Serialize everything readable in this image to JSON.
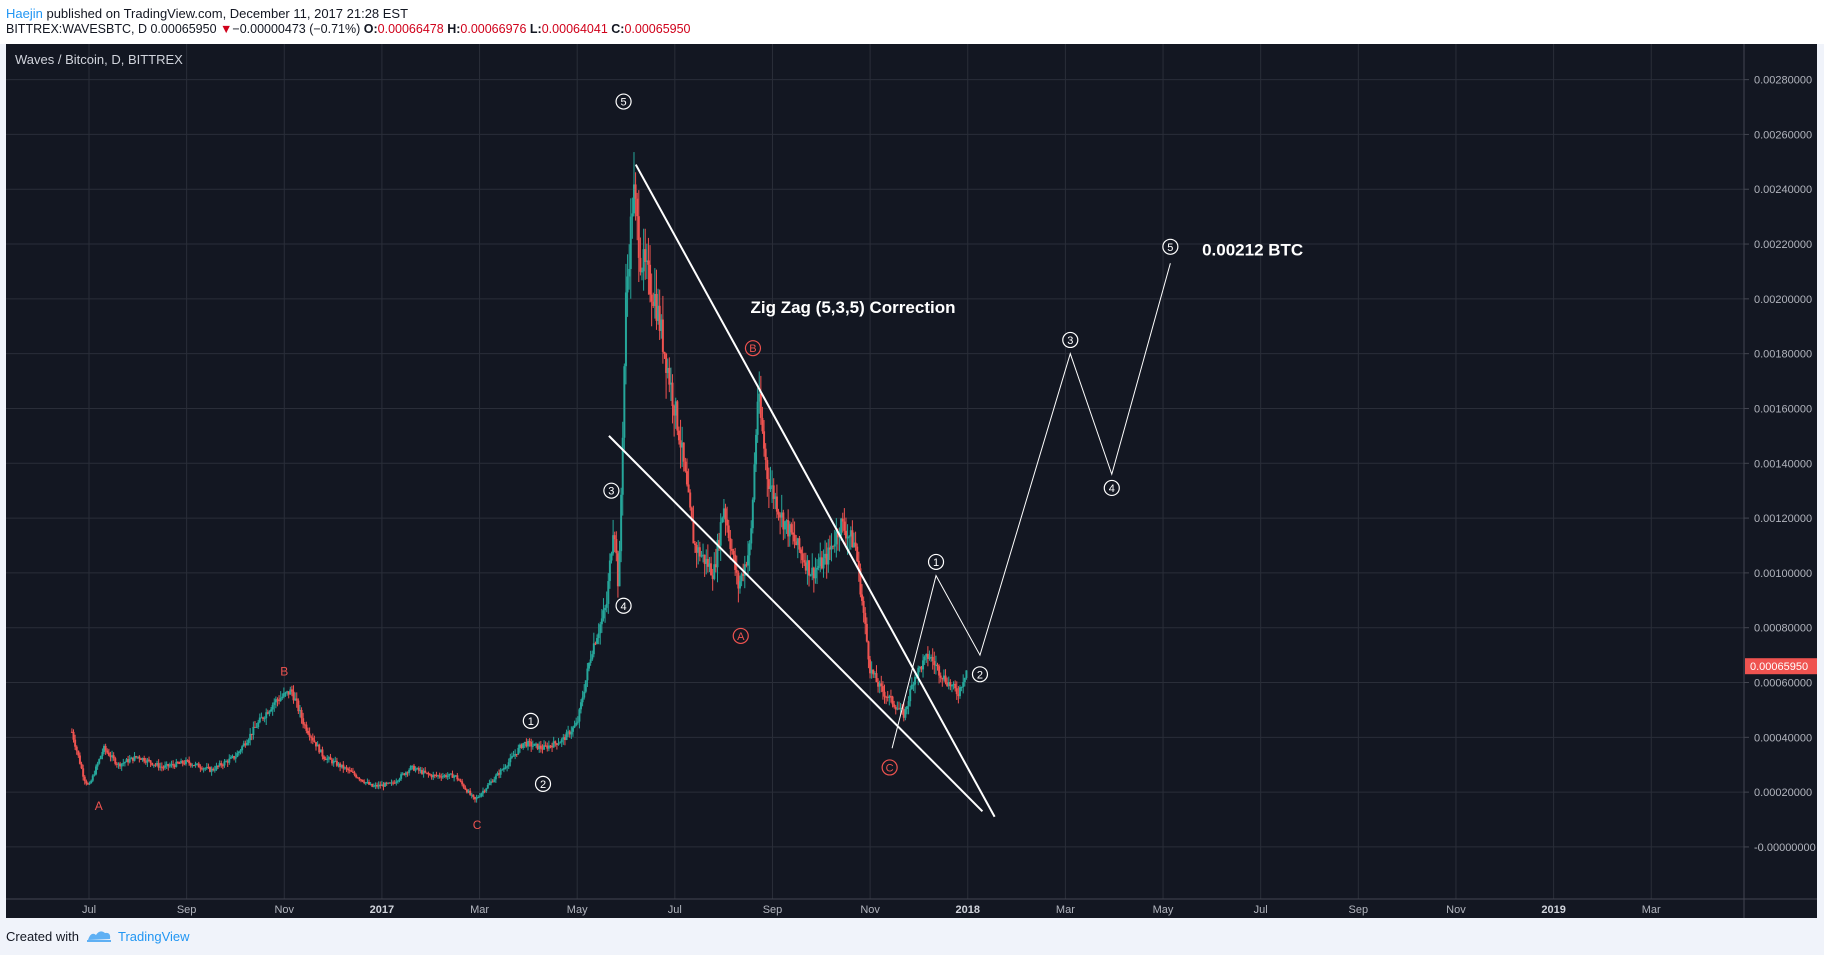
{
  "header": {
    "author": "Haejin",
    "published_text": " published on TradingView.com, December 11, 2017 21:28 EST",
    "symbol_line": "BITTREX:WAVESBTC, D",
    "last": "0.00065950",
    "change_arrow": "▼",
    "change": "−0.00000473 (−0.71%)",
    "o_label": "O:",
    "o": "0.00066478",
    "h_label": "H:",
    "h": "0.00066976",
    "l_label": "L:",
    "l": "0.00064041",
    "c_label": "C:",
    "c": "0.00065950"
  },
  "footer": {
    "created_with": "Created with",
    "brand": "TradingView"
  },
  "colors": {
    "background": "#131722",
    "grid": "#2a2e39",
    "up": "#26a69a",
    "down": "#ef5350",
    "wave_label": "#ffffff",
    "correction_label": "#ef5350",
    "price_tag": "#ef5350",
    "text": "#b2b5be"
  },
  "chart_data": {
    "type": "candlestick",
    "title": "Waves / Bitcoin, D, BITTREX",
    "x_ticks": [
      "Jul",
      "Sep",
      "Nov",
      "2017",
      "Mar",
      "May",
      "Jul",
      "Sep",
      "Nov",
      "2018",
      "Mar",
      "May",
      "Jul",
      "Sep",
      "Nov",
      "2019",
      "Mar"
    ],
    "x_tick_months": [
      13,
      15,
      17,
      19,
      21,
      23,
      25,
      27,
      29,
      31,
      33,
      35,
      37,
      39,
      41,
      43,
      45
    ],
    "x_range_months": [
      11.3,
      46.9
    ],
    "y_ticks": [
      "0.00280000",
      "0.00260000",
      "0.00240000",
      "0.00220000",
      "0.00200000",
      "0.00180000",
      "0.00160000",
      "0.00140000",
      "0.00120000",
      "0.00100000",
      "0.00080000",
      "0.00060000",
      "0.00040000",
      "0.00020000",
      "-0.00000000"
    ],
    "ylim": [
      -0.00019,
      0.00293
    ],
    "last_price_tag": "0.00065950",
    "last_price": 0.0006595,
    "price_path": [
      [
        12.65,
        0.00042
      ],
      [
        12.9,
        0.00025
      ],
      [
        13.0,
        0.00022
      ],
      [
        13.3,
        0.00036
      ],
      [
        13.6,
        0.0003
      ],
      [
        14.0,
        0.00033
      ],
      [
        14.5,
        0.00029
      ],
      [
        15.0,
        0.00031
      ],
      [
        15.5,
        0.00028
      ],
      [
        16.0,
        0.00033
      ],
      [
        16.5,
        0.00046
      ],
      [
        16.8,
        0.00053
      ],
      [
        17.15,
        0.00057
      ],
      [
        17.4,
        0.00045
      ],
      [
        17.8,
        0.00033
      ],
      [
        18.3,
        0.00028
      ],
      [
        18.8,
        0.00022
      ],
      [
        19.2,
        0.00023
      ],
      [
        19.6,
        0.00029
      ],
      [
        20.0,
        0.00026
      ],
      [
        20.5,
        0.00026
      ],
      [
        20.9,
        0.00017
      ],
      [
        21.2,
        0.00023
      ],
      [
        21.6,
        0.00031
      ],
      [
        21.9,
        0.00038
      ],
      [
        22.3,
        0.00036
      ],
      [
        22.7,
        0.00039
      ],
      [
        23.0,
        0.00045
      ],
      [
        23.3,
        0.00072
      ],
      [
        23.6,
        0.00088
      ],
      [
        23.75,
        0.0012
      ],
      [
        23.85,
        0.00093
      ],
      [
        24.0,
        0.002
      ],
      [
        24.15,
        0.0024
      ],
      [
        24.3,
        0.00215
      ],
      [
        24.6,
        0.002
      ],
      [
        24.9,
        0.0017
      ],
      [
        25.1,
        0.0015
      ],
      [
        25.4,
        0.0011
      ],
      [
        25.8,
        0.001
      ],
      [
        26.0,
        0.00125
      ],
      [
        26.3,
        0.00095
      ],
      [
        26.55,
        0.0011
      ],
      [
        26.7,
        0.00165
      ],
      [
        26.9,
        0.00135
      ],
      [
        27.2,
        0.0012
      ],
      [
        27.5,
        0.0011
      ],
      [
        27.8,
        0.001
      ],
      [
        28.1,
        0.00105
      ],
      [
        28.4,
        0.00118
      ],
      [
        28.7,
        0.0011
      ],
      [
        29.0,
        0.00065
      ],
      [
        29.2,
        0.00058
      ],
      [
        29.5,
        0.00052
      ],
      [
        29.7,
        0.00048
      ],
      [
        29.9,
        0.00062
      ],
      [
        30.2,
        0.0007
      ],
      [
        30.5,
        0.00062
      ],
      [
        30.8,
        0.00056
      ],
      [
        31.0,
        0.00066
      ]
    ],
    "label_legend": "circled digits are wave counts; red letters are correction labels",
    "wave_labels": [
      {
        "text": "5",
        "x": 23.95,
        "y": 0.00272,
        "style": "white"
      },
      {
        "text": "3",
        "x": 23.7,
        "y": 0.0013,
        "style": "white"
      },
      {
        "text": "4",
        "x": 23.95,
        "y": 0.00088,
        "style": "white"
      },
      {
        "text": "1",
        "x": 22.05,
        "y": 0.00046,
        "style": "white"
      },
      {
        "text": "2",
        "x": 22.3,
        "y": 0.00023,
        "style": "white"
      },
      {
        "text": "B",
        "x": 26.6,
        "y": 0.00182,
        "style": "red-circle"
      },
      {
        "text": "A",
        "x": 26.35,
        "y": 0.00077,
        "style": "red-circle"
      },
      {
        "text": "C",
        "x": 29.4,
        "y": 0.00029,
        "style": "red-circle"
      },
      {
        "text": "1",
        "x": 30.35,
        "y": 0.00104,
        "style": "white"
      },
      {
        "text": "2",
        "x": 31.25,
        "y": 0.00063,
        "style": "white"
      },
      {
        "text": "3",
        "x": 33.1,
        "y": 0.00185,
        "style": "white"
      },
      {
        "text": "4",
        "x": 33.95,
        "y": 0.00131,
        "style": "white"
      },
      {
        "text": "5",
        "x": 35.15,
        "y": 0.00219,
        "style": "white"
      },
      {
        "text": "A",
        "x": 13.2,
        "y": 0.00015,
        "style": "red-plain"
      },
      {
        "text": "B",
        "x": 17.0,
        "y": 0.00064,
        "style": "red-plain"
      },
      {
        "text": "C",
        "x": 20.95,
        "y": 8e-05,
        "style": "red-plain"
      }
    ],
    "trendlines": [
      {
        "x1": 24.2,
        "y1": 0.00249,
        "x2": 31.55,
        "y2": 0.00011
      },
      {
        "x1": 23.65,
        "y1": 0.0015,
        "x2": 31.3,
        "y2": 0.00013
      }
    ],
    "projection_path": [
      [
        29.45,
        0.00036
      ],
      [
        30.35,
        0.00099
      ],
      [
        31.25,
        0.0007
      ],
      [
        33.1,
        0.0018
      ],
      [
        33.95,
        0.00136
      ],
      [
        35.15,
        0.00213
      ]
    ],
    "annotations": [
      {
        "text": "Zig Zag (5,3,5) Correction",
        "x": 26.55,
        "y": 0.00197
      },
      {
        "text": "0.00212 BTC",
        "x": 35.8,
        "y": 0.00218
      }
    ]
  }
}
